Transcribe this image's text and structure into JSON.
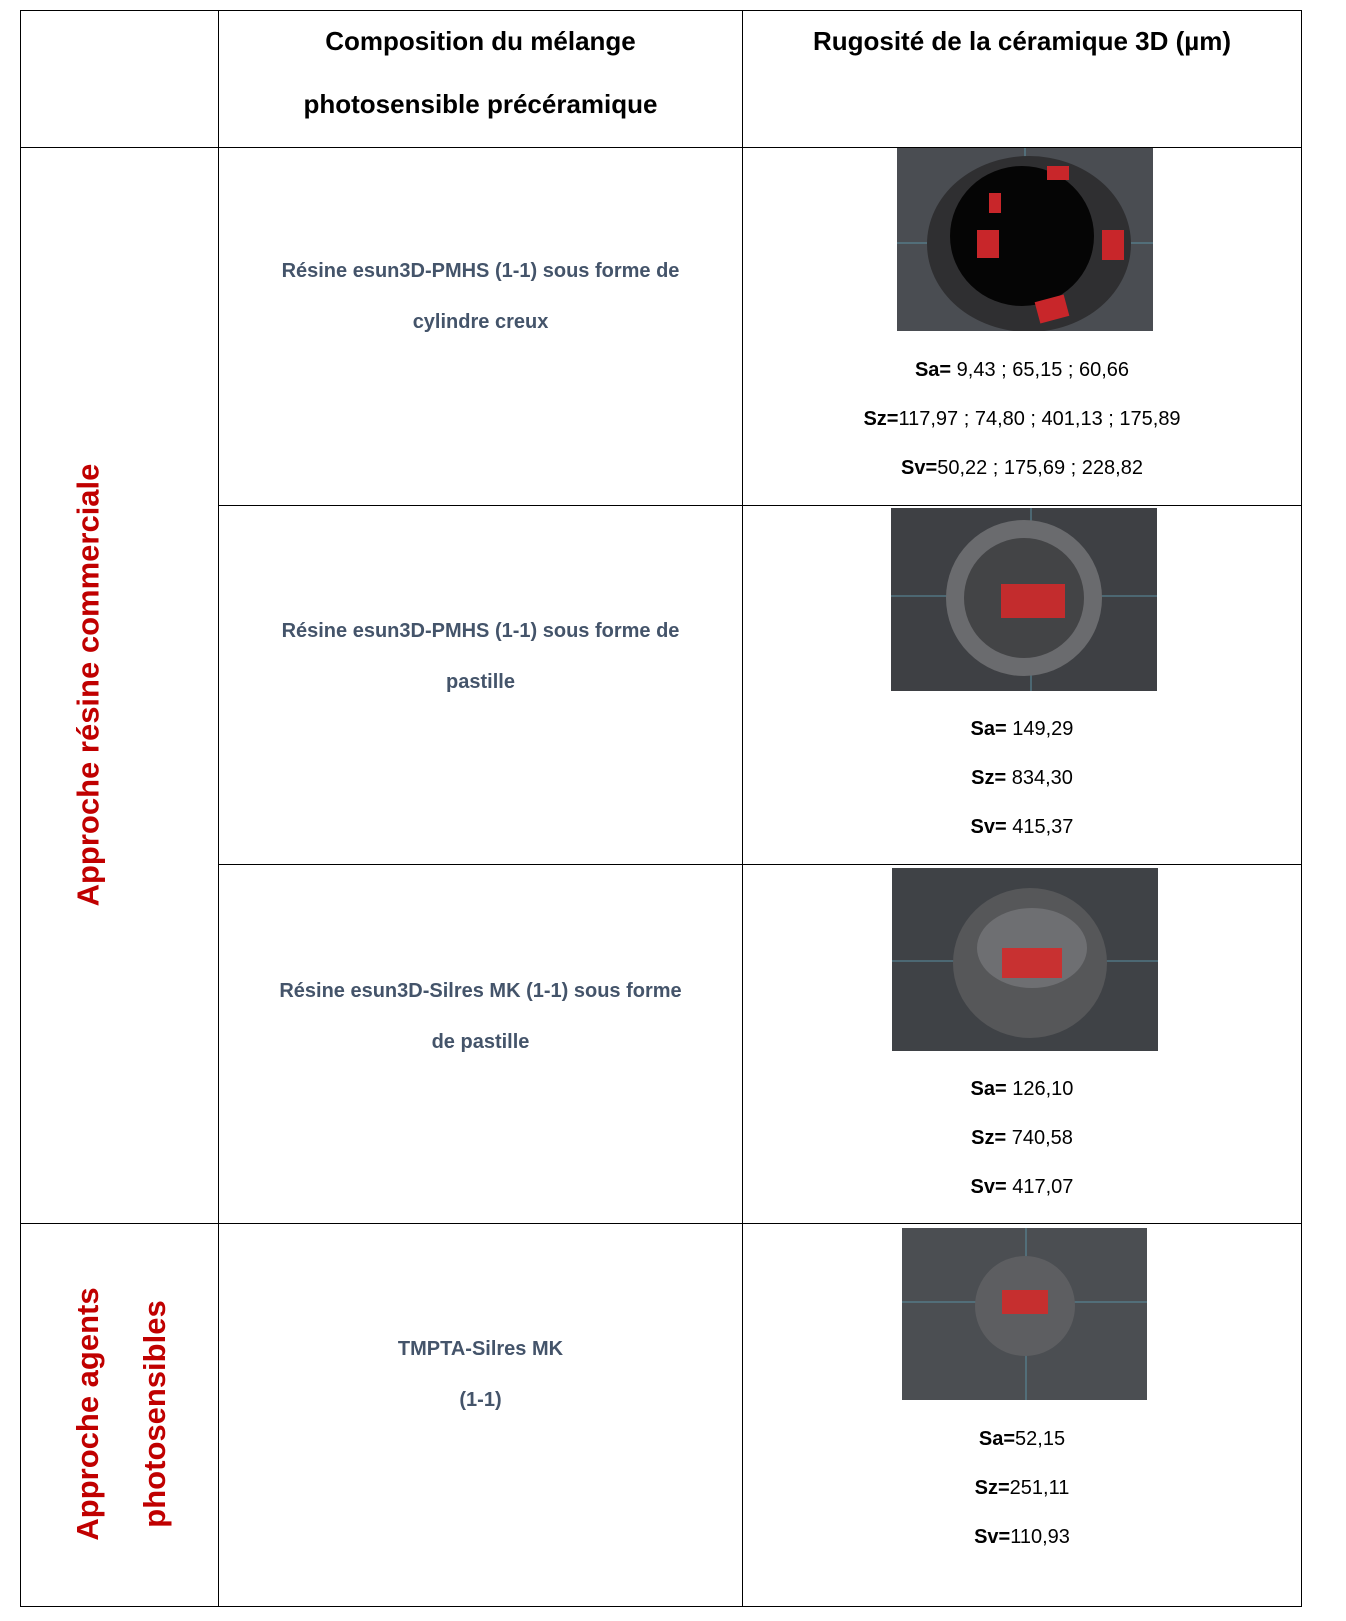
{
  "header": {
    "composition": "Composition du mélange photosensible précéramique",
    "roughness": "Rugosité de la céramique 3D (µm)"
  },
  "groups": [
    {
      "label": [
        "Approche résine commerciale"
      ],
      "rows": [
        {
          "composition": [
            "Résine esun3D-PMHS (1-1) sous forme de",
            "cylindre creux"
          ],
          "measures": [
            {
              "name": "Sa=",
              "value": " 9,43 ; 65,15 ; 60,66"
            },
            {
              "name": "Sz=",
              "value": "117,97 ; 74,80 ; 401,13 ; 175,89"
            },
            {
              "name": "Sv=",
              "value": "50,22 ; 175,69 ; 228,82"
            }
          ]
        },
        {
          "composition": [
            "Résine esun3D-PMHS (1-1) sous forme de",
            "pastille"
          ],
          "measures": [
            {
              "name": "Sa=",
              "value": " 149,29"
            },
            {
              "name": "Sz=",
              "value": " 834,30"
            },
            {
              "name": "Sv=",
              "value": " 415,37"
            }
          ]
        },
        {
          "composition": [
            "Résine esun3D-Silres MK (1-1) sous forme",
            "de pastille"
          ],
          "measures": [
            {
              "name": "Sa=",
              "value": " 126,10"
            },
            {
              "name": "Sz=",
              "value": " 740,58"
            },
            {
              "name": "Sv=",
              "value": " 417,07"
            }
          ]
        }
      ]
    },
    {
      "label": [
        "Approche agents",
        "photosensibles"
      ],
      "rows": [
        {
          "composition": [
            "TMPTA-Silres MK",
            "(1-1)"
          ],
          "measures": [
            {
              "name": "Sa=",
              "value": "52,15"
            },
            {
              "name": "Sz=",
              "value": "251,11"
            },
            {
              "name": "Sv=",
              "value": "110,93"
            }
          ]
        }
      ]
    }
  ]
}
